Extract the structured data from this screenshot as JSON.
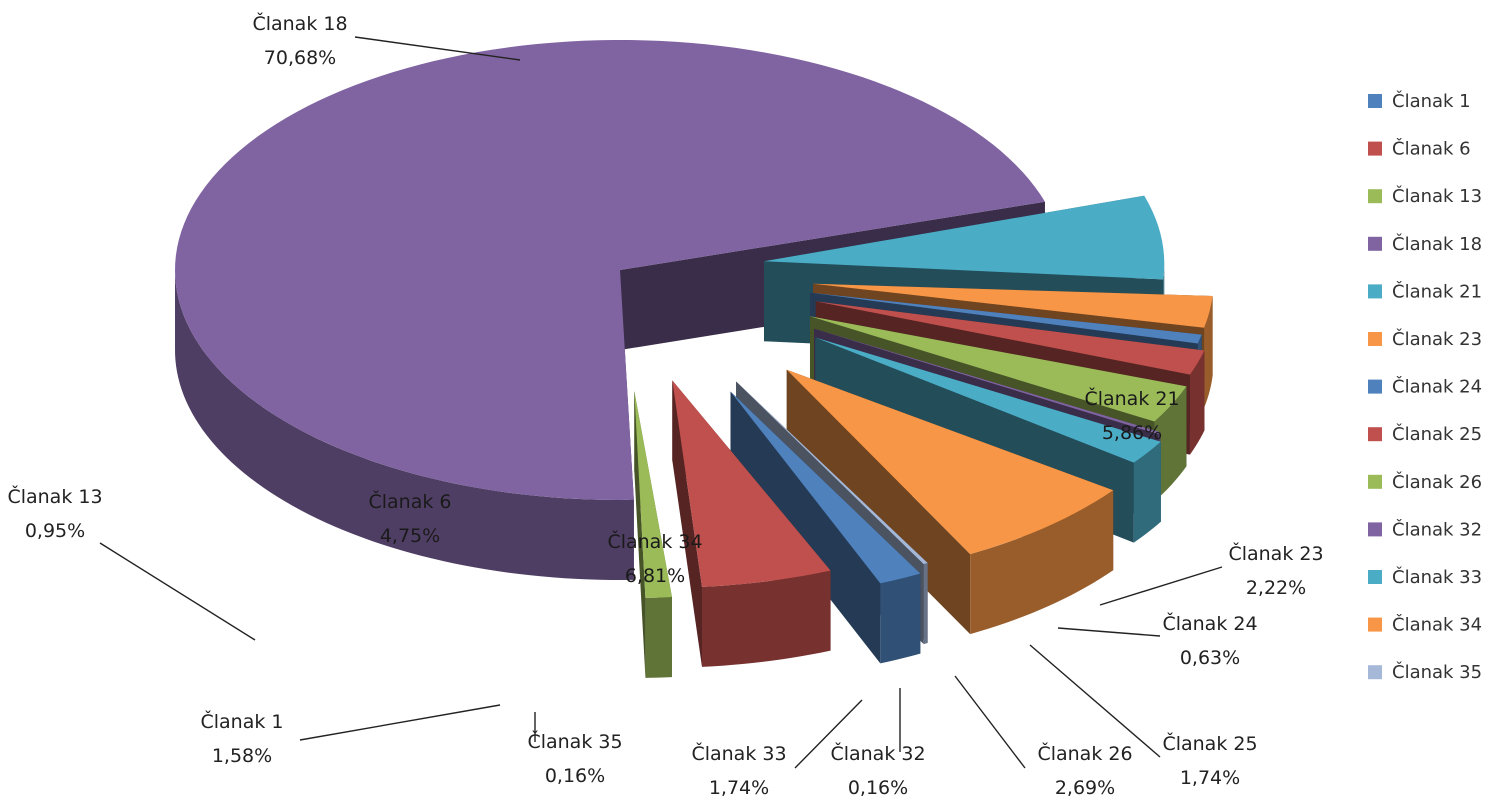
{
  "chart_data": {
    "type": "pie",
    "title": "",
    "legend_position": "right",
    "slices": [
      {
        "label": "Članak 1",
        "value": 1.58,
        "value_label": "1,58%",
        "color": "#4F81BD"
      },
      {
        "label": "Članak 6",
        "value": 4.75,
        "value_label": "4,75%",
        "color": "#C0504D"
      },
      {
        "label": "Članak 13",
        "value": 0.95,
        "value_label": "0,95%",
        "color": "#9BBB59"
      },
      {
        "label": "Članak 18",
        "value": 70.68,
        "value_label": "70,68%",
        "color": "#8064A2"
      },
      {
        "label": "Članak 21",
        "value": 5.86,
        "value_label": "5,86%",
        "color": "#4BACC6"
      },
      {
        "label": "Članak 23",
        "value": 2.22,
        "value_label": "2,22%",
        "color": "#F79646"
      },
      {
        "label": "Članak 24",
        "value": 0.63,
        "value_label": "0,63%",
        "color": "#4F81BD"
      },
      {
        "label": "Članak 25",
        "value": 1.74,
        "value_label": "1,74%",
        "color": "#C0504D"
      },
      {
        "label": "Članak 26",
        "value": 2.69,
        "value_label": "2,69%",
        "color": "#9BBB59"
      },
      {
        "label": "Članak 32",
        "value": 0.16,
        "value_label": "0,16%",
        "color": "#8064A2"
      },
      {
        "label": "Članak 33",
        "value": 1.74,
        "value_label": "1,74%",
        "color": "#4BACC6"
      },
      {
        "label": "Članak 34",
        "value": 6.81,
        "value_label": "6,81%",
        "color": "#F79646"
      },
      {
        "label": "Članak 35",
        "value": 0.16,
        "value_label": "0,16%",
        "color": "#A6B8D8"
      }
    ]
  }
}
